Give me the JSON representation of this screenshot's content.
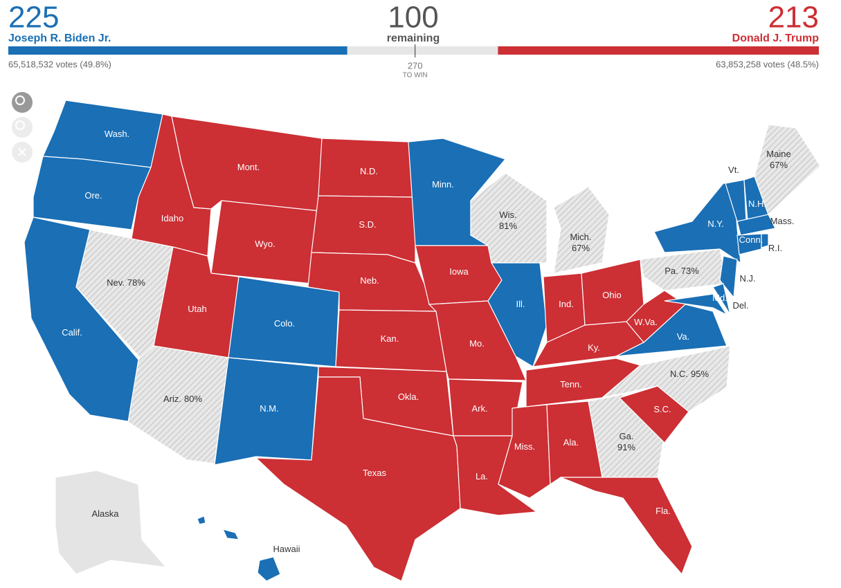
{
  "header": {
    "candidates": [
      {
        "name": "Joseph R. Biden Jr.",
        "electoral_votes": 225,
        "popular_votes": "65,518,532 votes (49.8%)",
        "color": "#1a6fb5"
      },
      {
        "name": "Donald J. Trump",
        "electoral_votes": 213,
        "popular_votes": "63,853,258 votes (48.5%)",
        "color": "#cc2f34"
      }
    ],
    "remaining": {
      "value": 100,
      "label": "remaining",
      "color": "#e6e6e6"
    },
    "to_win": {
      "value": 270,
      "label": "TO WIN"
    }
  },
  "map": {
    "status_colors": {
      "dem": "#1a6fb5",
      "rep": "#cc2f34",
      "counting": "hatch",
      "none": "#e4e4e4"
    },
    "states": [
      {
        "name": "Wash.",
        "status": "dem"
      },
      {
        "name": "Ore.",
        "status": "dem"
      },
      {
        "name": "Calif.",
        "status": "dem"
      },
      {
        "name": "Nev.",
        "reporting": "78%",
        "status": "counting"
      },
      {
        "name": "Idaho",
        "status": "rep"
      },
      {
        "name": "Mont.",
        "status": "rep"
      },
      {
        "name": "Wyo.",
        "status": "rep"
      },
      {
        "name": "Utah",
        "status": "rep"
      },
      {
        "name": "Colo.",
        "status": "dem"
      },
      {
        "name": "Ariz.",
        "reporting": "80%",
        "status": "counting"
      },
      {
        "name": "N.M.",
        "status": "dem"
      },
      {
        "name": "N.D.",
        "status": "rep"
      },
      {
        "name": "S.D.",
        "status": "rep"
      },
      {
        "name": "Neb.",
        "status": "rep"
      },
      {
        "name": "Kan.",
        "status": "rep"
      },
      {
        "name": "Okla.",
        "status": "rep"
      },
      {
        "name": "Texas",
        "status": "rep"
      },
      {
        "name": "Minn.",
        "status": "dem"
      },
      {
        "name": "Iowa",
        "status": "rep"
      },
      {
        "name": "Mo.",
        "status": "rep"
      },
      {
        "name": "Ark.",
        "status": "rep"
      },
      {
        "name": "La.",
        "status": "rep"
      },
      {
        "name": "Wis.",
        "reporting": "81%",
        "status": "counting"
      },
      {
        "name": "Ill.",
        "status": "dem"
      },
      {
        "name": "Mich.",
        "reporting": "67%",
        "status": "counting"
      },
      {
        "name": "Ind.",
        "status": "rep"
      },
      {
        "name": "Ohio",
        "status": "rep"
      },
      {
        "name": "Ky.",
        "status": "rep"
      },
      {
        "name": "Tenn.",
        "status": "rep"
      },
      {
        "name": "Miss.",
        "status": "rep"
      },
      {
        "name": "Ala.",
        "status": "rep"
      },
      {
        "name": "Ga.",
        "reporting": "91%",
        "status": "counting"
      },
      {
        "name": "Fla.",
        "status": "rep"
      },
      {
        "name": "S.C.",
        "status": "rep"
      },
      {
        "name": "N.C.",
        "reporting": "95%",
        "status": "counting"
      },
      {
        "name": "Va.",
        "status": "dem"
      },
      {
        "name": "W.Va.",
        "status": "rep"
      },
      {
        "name": "Pa.",
        "reporting": "73%",
        "status": "counting"
      },
      {
        "name": "N.Y.",
        "status": "dem"
      },
      {
        "name": "N.J.",
        "status": "dem"
      },
      {
        "name": "Del.",
        "status": "dem"
      },
      {
        "name": "Md.",
        "status": "dem"
      },
      {
        "name": "Vt.",
        "status": "dem"
      },
      {
        "name": "N.H.",
        "status": "dem"
      },
      {
        "name": "Maine",
        "reporting": "67%",
        "status": "counting"
      },
      {
        "name": "Mass.",
        "status": "dem"
      },
      {
        "name": "Conn.",
        "status": "dem"
      },
      {
        "name": "R.I.",
        "status": "dem"
      },
      {
        "name": "Alaska",
        "status": "none"
      },
      {
        "name": "Hawaii",
        "status": "dem"
      }
    ]
  }
}
